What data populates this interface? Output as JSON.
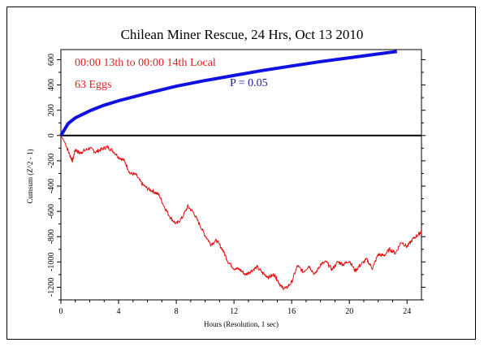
{
  "chart_data": {
    "type": "line",
    "title": "Chilean Miner Rescue, 24 Hrs, Oct 13 2010",
    "xlabel": "Hours (Resolution, 1 sec)",
    "ylabel": "Cumsum (Z^2 - 1)",
    "xlim": [
      0,
      25
    ],
    "ylim": [
      -1300,
      680
    ],
    "x_ticks": [
      0,
      4,
      8,
      12,
      16,
      20,
      24
    ],
    "y_ticks": [
      600,
      400,
      200,
      0,
      -200,
      -400,
      -600,
      -800,
      -1000,
      -1200
    ],
    "grid": false,
    "annotations": [
      {
        "text": "00:00 13th to 00:00 14th Local",
        "color": "#e02020"
      },
      {
        "text": "63 Eggs",
        "color": "#e02020"
      },
      {
        "text": "P = 0.05",
        "color": "#1a1aa0"
      }
    ],
    "series": [
      {
        "role": "probability envelope",
        "color": "#1010e0",
        "x": [
          0,
          0.5,
          1,
          2,
          3,
          4,
          6,
          8,
          10,
          12,
          14,
          16,
          18,
          20,
          22,
          23.3
        ],
        "y": [
          0,
          95,
          140,
          195,
          240,
          275,
          335,
          390,
          435,
          475,
          515,
          550,
          585,
          615,
          645,
          665
        ]
      },
      {
        "role": "cumulative deviation",
        "color": "#e01010",
        "x": [
          0,
          0.3,
          0.6,
          0.8,
          1.0,
          1.3,
          1.6,
          2.0,
          2.4,
          2.8,
          3.2,
          3.6,
          4.0,
          4.4,
          4.8,
          5.2,
          5.6,
          6.0,
          6.4,
          6.8,
          7.2,
          7.6,
          8.0,
          8.4,
          8.8,
          9.2,
          9.6,
          10.0,
          10.4,
          10.8,
          11.2,
          11.6,
          12.0,
          12.4,
          12.8,
          13.2,
          13.6,
          14.0,
          14.4,
          14.8,
          15.0,
          15.3,
          15.6,
          16.0,
          16.4,
          16.8,
          17.2,
          17.6,
          18.0,
          18.4,
          18.8,
          19.2,
          19.6,
          20.0,
          20.4,
          20.8,
          21.2,
          21.6,
          22.0,
          22.4,
          22.8,
          23.2,
          23.6,
          24.0,
          24.4,
          24.8,
          25.0
        ],
        "y": [
          0,
          -60,
          -150,
          -200,
          -110,
          -140,
          -120,
          -100,
          -130,
          -110,
          -90,
          -120,
          -170,
          -200,
          -300,
          -310,
          -380,
          -420,
          -440,
          -470,
          -570,
          -650,
          -700,
          -650,
          -560,
          -610,
          -700,
          -790,
          -860,
          -830,
          -900,
          -1000,
          -1050,
          -1060,
          -1100,
          -1070,
          -1040,
          -1090,
          -1120,
          -1100,
          -1140,
          -1200,
          -1210,
          -1160,
          -1030,
          -1080,
          -1030,
          -1100,
          -1020,
          -1000,
          -1060,
          -1000,
          -1020,
          -990,
          -1070,
          -1020,
          -980,
          -1050,
          -940,
          -950,
          -900,
          -930,
          -840,
          -880,
          -820,
          -780,
          -760
        ]
      }
    ]
  }
}
